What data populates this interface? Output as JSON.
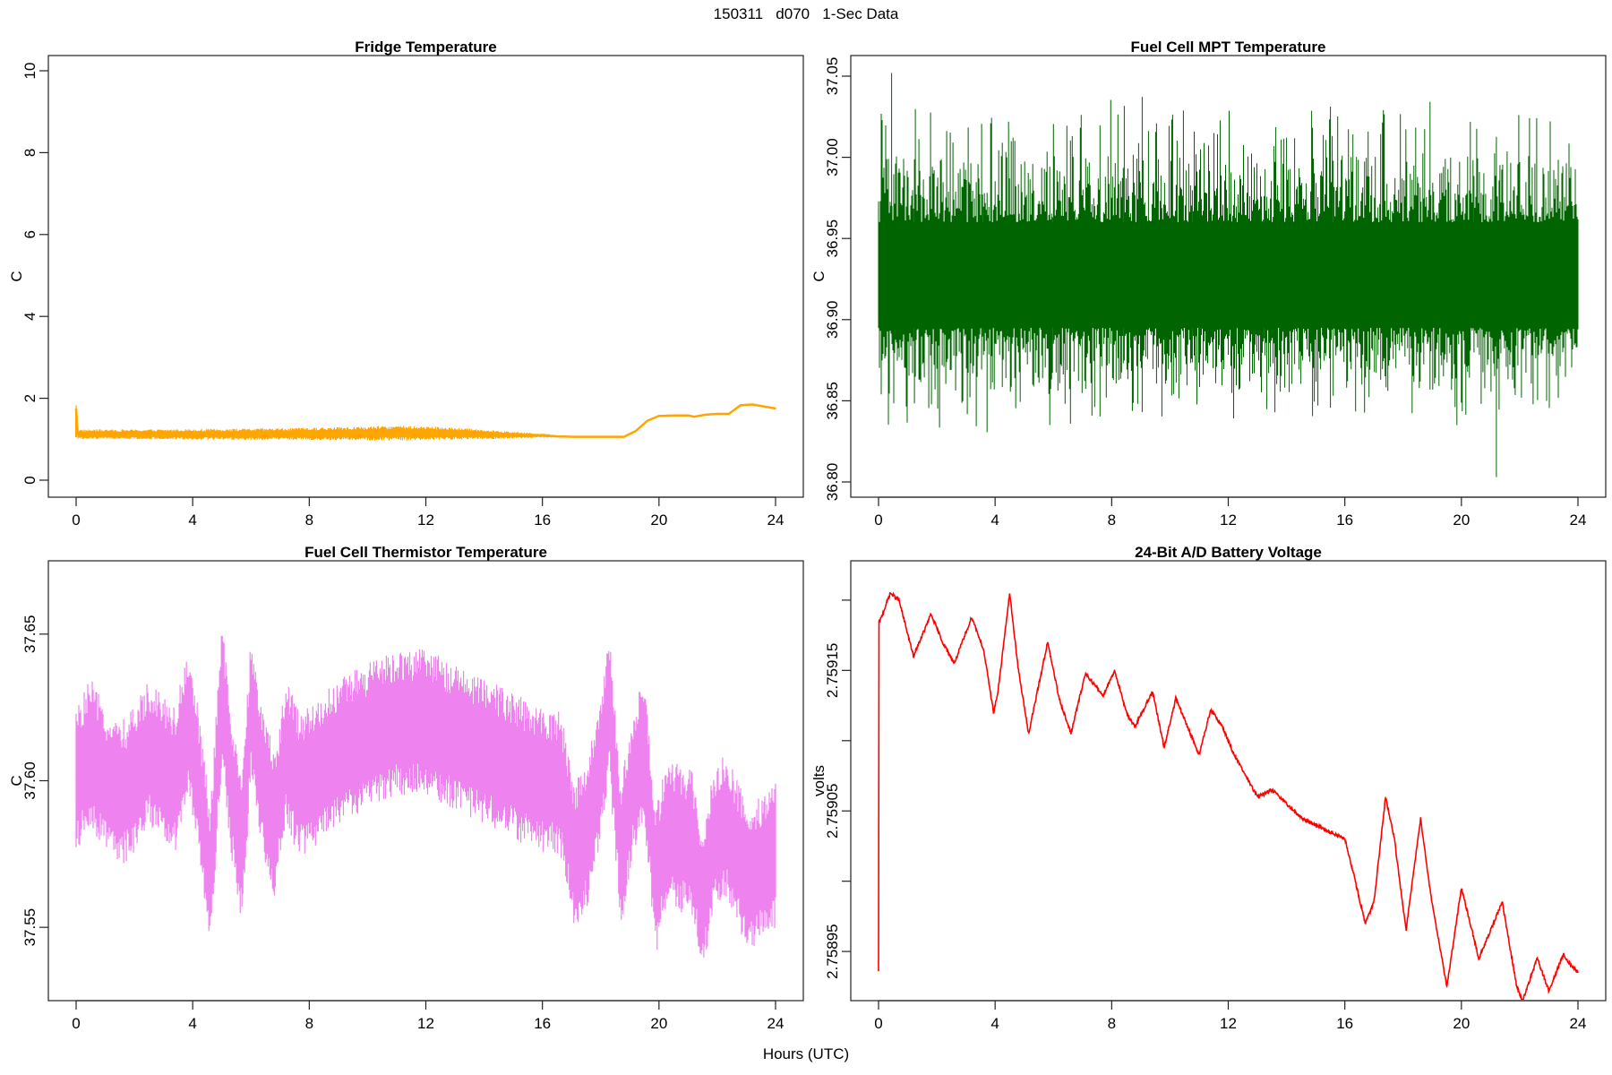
{
  "title": "150311   d070   1-Sec Data",
  "xlabel": "Hours (UTC)",
  "chart_data": [
    {
      "id": "fridge",
      "type": "line",
      "title": "Fridge Temperature",
      "xlabel": "",
      "ylabel": "C",
      "color": "#FFA500",
      "xlim": [
        0,
        24
      ],
      "ylim": [
        0,
        10
      ],
      "xticks": [
        0,
        4,
        8,
        12,
        16,
        20,
        24
      ],
      "yticks": [
        0,
        2,
        4,
        6,
        8,
        10
      ],
      "ytick_labels": [
        "0",
        "2",
        "4",
        "6",
        "8",
        "10"
      ],
      "series": [
        {
          "name": "Fridge Temperature",
          "x": [
            0,
            0.05,
            1,
            2,
            4,
            6,
            8,
            10,
            11,
            12,
            14,
            15,
            16,
            16.5,
            17,
            18,
            18.8,
            19.2,
            19.6,
            20,
            20.6,
            21,
            21.2,
            21.6,
            22,
            22.4,
            22.8,
            23.2,
            23.6,
            24
          ],
          "values": [
            1.75,
            1.12,
            1.12,
            1.12,
            1.12,
            1.12,
            1.13,
            1.14,
            1.15,
            1.15,
            1.12,
            1.1,
            1.09,
            1.07,
            1.06,
            1.06,
            1.06,
            1.2,
            1.45,
            1.57,
            1.58,
            1.58,
            1.55,
            1.6,
            1.62,
            1.62,
            1.83,
            1.85,
            1.8,
            1.75
          ],
          "noise_band": [
            0.12,
            0.12,
            0.12,
            0.12,
            0.13,
            0.14,
            0.15,
            0.17,
            0.18,
            0.17,
            0.12,
            0.08,
            0.05,
            0.03,
            0.02,
            0.02,
            0.02,
            0.02,
            0.02,
            0.02,
            0.02,
            0.02,
            0.02,
            0.02,
            0.02,
            0.02,
            0.02,
            0.02,
            0.02,
            0.02
          ]
        }
      ]
    },
    {
      "id": "mpt",
      "type": "line",
      "title": "Fuel Cell MPT Temperature",
      "xlabel": "",
      "ylabel": "C",
      "color": "#006400",
      "xlim": [
        0,
        24
      ],
      "ylim": [
        36.8,
        37.05
      ],
      "xticks": [
        0,
        4,
        8,
        12,
        16,
        20,
        24
      ],
      "yticks": [
        36.8,
        36.85,
        36.9,
        36.95,
        37.0,
        37.05
      ],
      "ytick_labels": [
        "36.80",
        "36.85",
        "36.90",
        "36.95",
        "37.00",
        "37.05"
      ],
      "series": [
        {
          "name": "Fuel Cell MPT Temperature",
          "x": [
            0,
            24
          ],
          "values": [
            36.925,
            36.925
          ],
          "core_band": [
            36.895,
            36.96
          ],
          "peak_range": [
            36.821,
            37.052
          ],
          "extremes": {
            "min": 36.803,
            "min_at_hour": 21.2,
            "max": 37.052,
            "max_at_hour": 0.45
          }
        }
      ]
    },
    {
      "id": "thermistor",
      "type": "line",
      "title": "Fuel Cell Thermistor Temperature",
      "xlabel": "",
      "ylabel": "C",
      "color": "#EE82EE",
      "xlim": [
        0,
        24
      ],
      "ylim": [
        37.525,
        37.675
      ],
      "xticks": [
        0,
        4,
        8,
        12,
        16,
        20,
        24
      ],
      "yticks": [
        37.55,
        37.6,
        37.65
      ],
      "ytick_labels": [
        "37.55",
        "37.60",
        "37.65"
      ],
      "series": [
        {
          "name": "Fuel Cell Thermistor Temperature",
          "x": [
            0,
            0.5,
            1,
            1.5,
            2,
            2.5,
            3,
            3.4,
            3.8,
            4.2,
            4.6,
            5,
            5.3,
            5.7,
            6,
            6.4,
            6.8,
            7.2,
            7.6,
            8,
            9,
            10,
            11,
            12,
            13,
            14,
            15,
            16,
            16.6,
            17.1,
            17.5,
            17.9,
            18.3,
            18.7,
            19.1,
            19.5,
            19.9,
            20.3,
            20.7,
            21.1,
            21.5,
            21.9,
            22.3,
            22.7,
            23.1,
            23.5,
            24
          ],
          "values": [
            37.6,
            37.61,
            37.6,
            37.595,
            37.6,
            37.61,
            37.605,
            37.6,
            37.62,
            37.6,
            37.565,
            37.63,
            37.6,
            37.575,
            37.625,
            37.6,
            37.585,
            37.61,
            37.6,
            37.6,
            37.61,
            37.615,
            37.62,
            37.62,
            37.615,
            37.61,
            37.605,
            37.6,
            37.6,
            37.575,
            37.58,
            37.6,
            37.625,
            37.575,
            37.6,
            37.61,
            37.565,
            37.585,
            37.58,
            37.58,
            37.56,
            37.58,
            37.585,
            37.575,
            37.565,
            37.57,
            37.575
          ],
          "noise_band": [
            0.025,
            0.025,
            0.025,
            0.025,
            0.025,
            0.025,
            0.025,
            0.025,
            0.025,
            0.025,
            0.025,
            0.025,
            0.025,
            0.025,
            0.025,
            0.025,
            0.025,
            0.025,
            0.025,
            0.025,
            0.025,
            0.025,
            0.025,
            0.025,
            0.025,
            0.025,
            0.025,
            0.025,
            0.025,
            0.025,
            0.025,
            0.025,
            0.025,
            0.025,
            0.025,
            0.025,
            0.025,
            0.025,
            0.025,
            0.025,
            0.025,
            0.025,
            0.025,
            0.025,
            0.025,
            0.025,
            0.025
          ]
        }
      ]
    },
    {
      "id": "battery",
      "type": "line",
      "title": "24-Bit A/D Battery Voltage",
      "xlabel": "",
      "ylabel": "volts",
      "color": "#FF0000",
      "xlim": [
        0,
        24
      ],
      "ylim": [
        2.758915,
        2.759228
      ],
      "xticks": [
        0,
        4,
        8,
        12,
        16,
        20,
        24
      ],
      "yticks": [
        2.75895,
        2.759,
        2.75905,
        2.7591,
        2.75915,
        2.7592
      ],
      "ytick_labels": [
        "2.75895",
        "",
        "2.75905",
        "",
        "2.75915",
        ""
      ],
      "series": [
        {
          "name": "24-Bit A/D Battery Voltage",
          "x": [
            0,
            0.01,
            0.05,
            0.4,
            0.7,
            1.2,
            1.5,
            1.8,
            2.2,
            2.6,
            3.2,
            3.6,
            3.95,
            4.1,
            4.5,
            4.8,
            5.15,
            5.5,
            5.8,
            6.2,
            6.6,
            7.1,
            7.4,
            7.7,
            8.1,
            8.5,
            8.8,
            9.4,
            9.8,
            10.2,
            10.6,
            11.0,
            11.4,
            11.8,
            12.2,
            12.6,
            13.0,
            13.5,
            14,
            14.5,
            15,
            15.5,
            16,
            16.3,
            16.7,
            17.0,
            17.4,
            17.7,
            18.1,
            18.6,
            18.95,
            19.5,
            20.0,
            20.6,
            21.0,
            21.4,
            21.9,
            22.1,
            22.6,
            23.0,
            23.5,
            23.7,
            24
          ],
          "values": [
            2.758935,
            2.759185,
            2.759185,
            2.759205,
            2.7592,
            2.75916,
            2.759175,
            2.75919,
            2.75917,
            2.759155,
            2.759188,
            2.759165,
            2.75912,
            2.759135,
            2.759205,
            2.75915,
            2.759105,
            2.75914,
            2.75917,
            2.75913,
            2.759105,
            2.759148,
            2.75914,
            2.759132,
            2.75915,
            2.75912,
            2.75911,
            2.759135,
            2.759095,
            2.75913,
            2.75911,
            2.75909,
            2.759122,
            2.75911,
            2.75909,
            2.759075,
            2.75906,
            2.759065,
            2.759055,
            2.759045,
            2.75904,
            2.759035,
            2.75903,
            2.759005,
            2.75897,
            2.758985,
            2.75906,
            2.75903,
            2.758965,
            2.759045,
            2.75899,
            2.758925,
            2.758995,
            2.758945,
            2.758965,
            2.758985,
            2.758925,
            2.758915,
            2.758945,
            2.758922,
            2.758948,
            2.758942,
            2.758935
          ]
        }
      ]
    }
  ]
}
